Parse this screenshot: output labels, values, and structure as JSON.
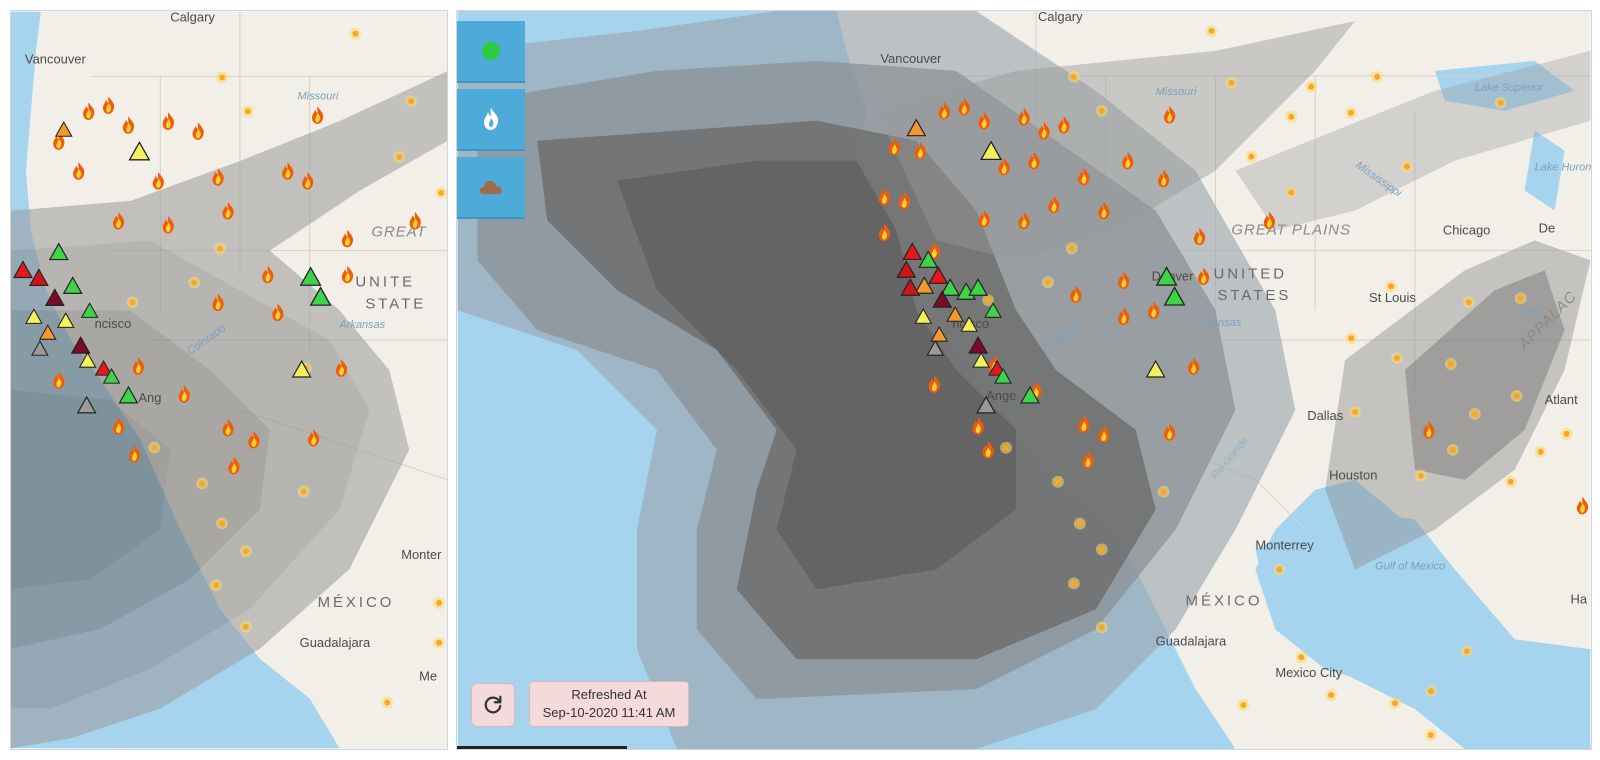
{
  "maps": {
    "left": {
      "labels": {
        "calgary": "Calgary",
        "vancouver": "Vancouver",
        "missouri": "Missouri",
        "great": "GREAT",
        "united": "UNITE",
        "states": "STATE",
        "arkansas": "Arkansas",
        "colorado": "Colorado",
        "francisco": "ncisco",
        "angeles": "Ang",
        "montere": "Monter",
        "mexico": "MÉXICO",
        "guadalajara": "Guadalajara",
        "me": "Me"
      }
    },
    "right": {
      "labels": {
        "calgary": "Calgary",
        "vancouver": "Vancouver",
        "missouri": "Missouri",
        "lake_superior": "Lake Superior",
        "mississippi": "Mississippi",
        "lake_huron": "Lake Huron",
        "great_plains": "GREAT PLAINS",
        "chicago": "Chicago",
        "detroit": "De",
        "united": "UNITED",
        "states": "STATES",
        "denver": "Denver",
        "st_louis": "St Louis",
        "arkansas": "Arkansas",
        "ohio": "Ohio",
        "appalachian": "APPALAC",
        "colorado": "Colorado",
        "francisco": "ncisco",
        "angeles": "Ange",
        "dallas": "Dallas",
        "atlanta": "Atlant",
        "houston": "Houston",
        "rio_grande": "Rio Grande",
        "monterrey": "Monterrey",
        "gulf": "Gulf of Mexico",
        "mexico": "MÉXICO",
        "guadalajara": "Guadalajara",
        "mexico_city": "Mexico City",
        "havana": "Ha"
      }
    }
  },
  "controls": {
    "aqi_layer": "green-dot-icon",
    "fire_layer": "fire-icon",
    "smoke_layer": "cloud-icon"
  },
  "refresh": {
    "icon": "refresh-icon",
    "label": "Refreshed At",
    "timestamp": "Sep-10-2020 11:41 AM"
  },
  "colors": {
    "ocean": "#a6d3ee",
    "land": "#f1efe8",
    "smoke": "#6e6e6e",
    "control_bg": "#4eaad9",
    "refresh_bg": "#f5d9db",
    "fire_outer": "#f25c05",
    "fire_inner": "#ffd23f"
  }
}
